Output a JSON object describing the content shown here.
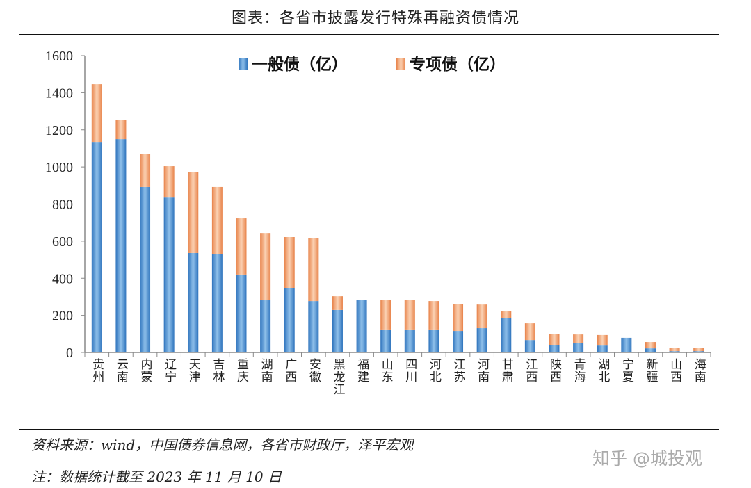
{
  "title": "图表：各省市披露发行特殊再融资债情况",
  "source": "资料来源：wind，中国债券信息网，各省市财政厅，泽平宏观",
  "note": "注：数据统计截至 2023 年 11 月 10 日",
  "watermark": "知乎 @城投观",
  "chart_data": {
    "type": "bar",
    "stacked": true,
    "title": "图表：各省市披露发行特殊再融资债情况",
    "xlabel": "",
    "ylabel": "",
    "ylim": [
      0,
      1600
    ],
    "yticks": [
      "0",
      "200",
      "400",
      "600",
      "800",
      "1000",
      "1200",
      "1400",
      "1600"
    ],
    "legend_position": "top",
    "categories": [
      "贵州",
      "云南",
      "内蒙",
      "辽宁",
      "天津",
      "吉林",
      "重庆",
      "湖南",
      "广西",
      "安徽",
      "黑龙江",
      "福建",
      "山东",
      "四川",
      "河北",
      "江苏",
      "河南",
      "甘肃",
      "江西",
      "陕西",
      "青海",
      "湖北",
      "宁夏",
      "新疆",
      "山西",
      "海南"
    ],
    "series": [
      {
        "name": "一般债（亿）",
        "color": "#3a82c8",
        "values": [
          1135,
          1150,
          892,
          835,
          536,
          532,
          420,
          281,
          348,
          277,
          229,
          281,
          124,
          124,
          124,
          116,
          131,
          184,
          67,
          41,
          52,
          37,
          79,
          22,
          7,
          7
        ]
      },
      {
        "name": "专项债（亿）",
        "color": "#ef9b63",
        "values": [
          311,
          105,
          176,
          169,
          438,
          360,
          303,
          363,
          274,
          341,
          74,
          0,
          157,
          157,
          153,
          146,
          127,
          37,
          90,
          60,
          45,
          57,
          0,
          34,
          19,
          19
        ]
      }
    ]
  }
}
